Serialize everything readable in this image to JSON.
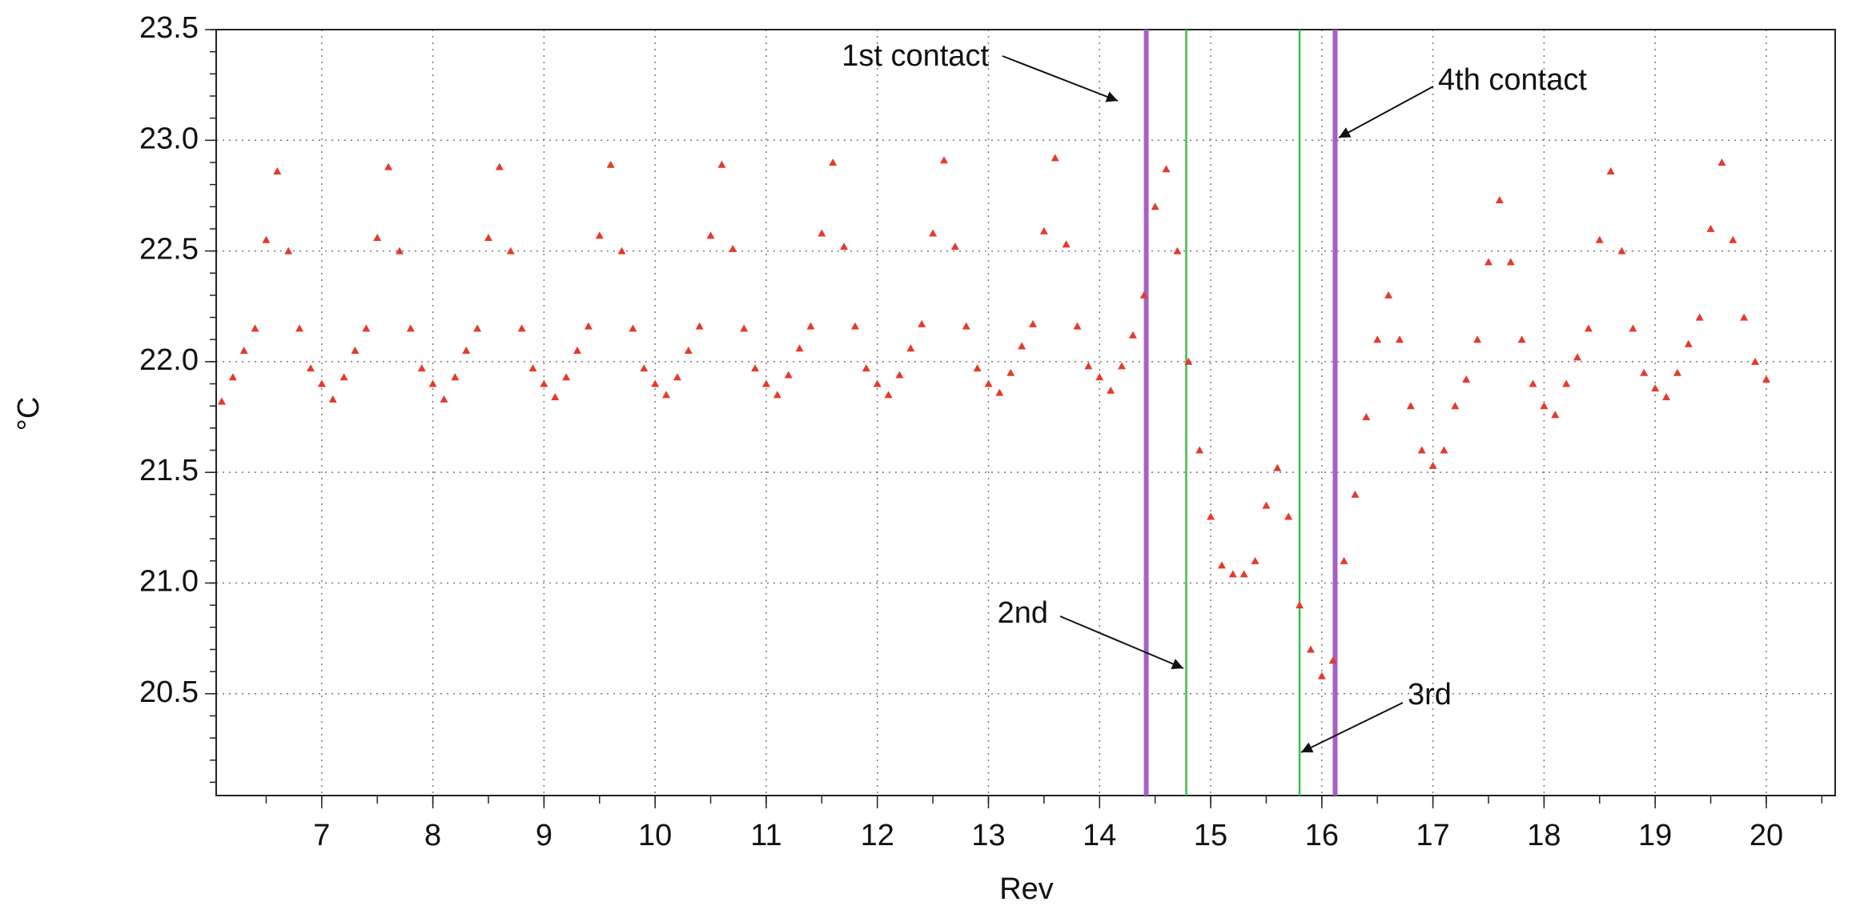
{
  "chart_data": {
    "type": "scatter",
    "x_label": "Rev",
    "y_label": "°C",
    "color": "#e5392b",
    "marker": "triangle",
    "grid": true,
    "xlim": [
      6.05,
      20.62
    ],
    "ylim": [
      20.04,
      23.5
    ],
    "xticks": [
      7,
      8,
      9,
      10,
      11,
      12,
      13,
      14,
      15,
      16,
      17,
      18,
      19,
      20
    ],
    "yticks": [
      20.5,
      {
        "value": 21,
        "label": "21.0"
      },
      21.5,
      {
        "value": 22,
        "label": "22.0"
      },
      22.5,
      {
        "value": 23,
        "label": "23.0"
      },
      23.5
    ],
    "vlines": [
      {
        "x": 14.42,
        "color": "#a75fc6"
      },
      {
        "x": 14.78,
        "color": "#3dbf4c"
      },
      {
        "x": 15.8,
        "color": "#3dbf4c"
      },
      {
        "x": 16.12,
        "color": "#a75fc6"
      }
    ],
    "annotations": [
      "1st contact",
      "4th contact",
      "2nd",
      "3rd"
    ],
    "x": [
      6.1,
      6.2,
      6.3,
      6.4,
      6.5,
      6.6,
      6.7,
      6.8,
      6.9,
      7.0,
      7.1,
      7.2,
      7.3,
      7.4,
      7.5,
      7.6,
      7.7,
      7.8,
      7.9,
      8.0,
      8.1,
      8.2,
      8.3,
      8.4,
      8.5,
      8.6,
      8.7,
      8.8,
      8.9,
      9.0,
      9.1,
      9.2,
      9.3,
      9.4,
      9.5,
      9.6,
      9.7,
      9.8,
      9.9,
      10.0,
      10.1,
      10.2,
      10.3,
      10.4,
      10.5,
      10.6,
      10.7,
      10.8,
      10.9,
      11.0,
      11.1,
      11.2,
      11.3,
      11.4,
      11.5,
      11.6,
      11.7,
      11.8,
      11.9,
      12.0,
      12.1,
      12.2,
      12.3,
      12.4,
      12.5,
      12.6,
      12.7,
      12.8,
      12.9,
      13.0,
      13.1,
      13.2,
      13.3,
      13.4,
      13.5,
      13.6,
      13.7,
      13.8,
      13.9,
      14.0,
      14.1,
      14.2,
      14.3,
      14.4,
      14.5,
      14.6,
      14.7,
      14.8,
      14.9,
      15.0,
      15.1,
      15.2,
      15.3,
      15.4,
      15.5,
      15.6,
      15.7,
      15.8,
      15.9,
      16.0,
      16.1,
      16.2,
      16.3,
      16.4,
      16.5,
      16.6,
      16.7,
      16.8,
      16.9,
      17.0,
      17.1,
      17.2,
      17.3,
      17.4,
      17.5,
      17.6,
      17.7,
      17.8,
      17.9,
      18.0,
      18.1,
      18.2,
      18.3,
      18.4,
      18.5,
      18.6,
      18.7,
      18.8,
      18.9,
      19.0,
      19.1,
      19.2,
      19.3,
      19.4,
      19.5,
      19.6,
      19.7,
      19.8,
      19.9,
      20.0
    ],
    "values": [
      21.82,
      21.93,
      22.05,
      22.15,
      22.55,
      22.86,
      22.5,
      22.15,
      21.97,
      21.9,
      21.83,
      21.93,
      22.05,
      22.15,
      22.56,
      22.88,
      22.5,
      22.15,
      21.97,
      21.9,
      21.83,
      21.93,
      22.05,
      22.15,
      22.56,
      22.88,
      22.5,
      22.15,
      21.97,
      21.9,
      21.84,
      21.93,
      22.05,
      22.16,
      22.57,
      22.89,
      22.5,
      22.15,
      21.97,
      21.9,
      21.85,
      21.93,
      22.05,
      22.16,
      22.57,
      22.89,
      22.51,
      22.15,
      21.97,
      21.9,
      21.85,
      21.94,
      22.06,
      22.16,
      22.58,
      22.9,
      22.52,
      22.16,
      21.97,
      21.9,
      21.85,
      21.94,
      22.06,
      22.17,
      22.58,
      22.91,
      22.52,
      22.16,
      21.97,
      21.9,
      21.86,
      21.95,
      22.07,
      22.17,
      22.59,
      22.92,
      22.53,
      22.16,
      21.98,
      21.93,
      21.87,
      21.98,
      22.12,
      22.3,
      22.7,
      22.87,
      22.5,
      22.0,
      21.6,
      21.3,
      21.08,
      21.04,
      21.04,
      21.1,
      21.35,
      21.52,
      21.3,
      20.9,
      20.7,
      20.58,
      20.65,
      21.1,
      21.4,
      21.75,
      22.1,
      22.3,
      22.1,
      21.8,
      21.6,
      21.53,
      21.6,
      21.8,
      21.92,
      22.1,
      22.45,
      22.73,
      22.45,
      22.1,
      21.9,
      21.8,
      21.76,
      21.9,
      22.02,
      22.15,
      22.55,
      22.86,
      22.5,
      22.15,
      21.95,
      21.88,
      21.84,
      21.95,
      22.08,
      22.2,
      22.6,
      22.9,
      22.55,
      22.2,
      22.0,
      21.92
    ]
  }
}
